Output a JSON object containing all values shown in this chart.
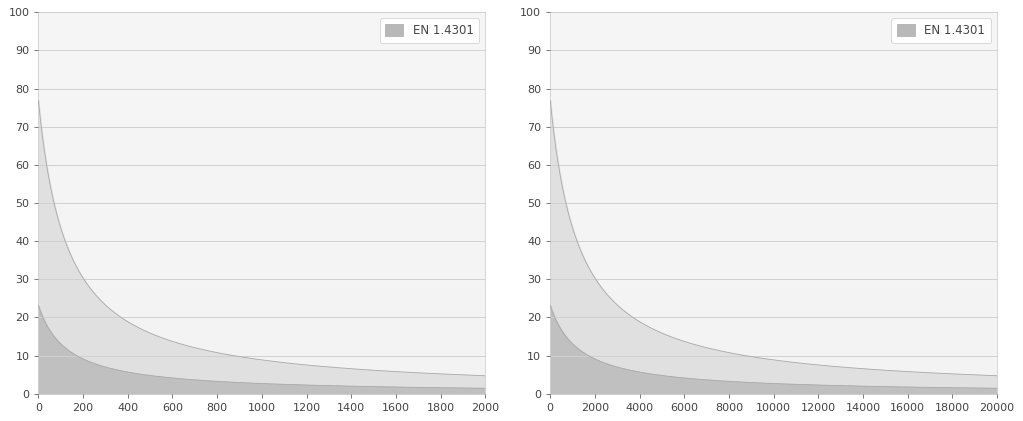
{
  "chart1": {
    "xmax": 2000,
    "xticks": [
      0,
      200,
      400,
      600,
      800,
      1000,
      1200,
      1400,
      1600,
      1800,
      2000
    ],
    "curve1_k": 10000,
    "curve1_c": 130,
    "curve2_k": 3000,
    "curve2_c": 130,
    "ymax": 100,
    "yticks": [
      0,
      10,
      20,
      30,
      40,
      50,
      60,
      70,
      80,
      90,
      100
    ]
  },
  "chart2": {
    "xmax": 20000,
    "xticks": [
      0,
      2000,
      4000,
      6000,
      8000,
      10000,
      12000,
      14000,
      16000,
      18000,
      20000
    ],
    "curve1_k": 100000,
    "curve1_c": 1300,
    "curve2_k": 30000,
    "curve2_c": 1300,
    "ymax": 100,
    "yticks": [
      0,
      10,
      20,
      30,
      40,
      50,
      60,
      70,
      80,
      90,
      100
    ]
  },
  "legend_label": "EN 1.4301",
  "fill_color_light": "#e0e0e0",
  "fill_color_dark": "#c0c0c0",
  "plot_bg_gradient_top": "#f8f8f8",
  "plot_bg_color": "#f2f2f2",
  "grid_color": "#d0d0d0",
  "line_color": "#aaaaaa",
  "legend_patch_color": "#b8b8b8",
  "text_color": "#444444",
  "figure_bg": "#ffffff"
}
